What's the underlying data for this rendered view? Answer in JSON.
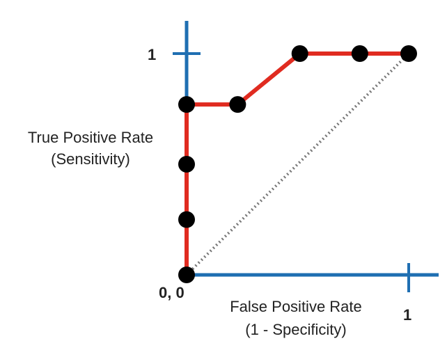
{
  "chart_data": {
    "type": "line",
    "ylabel_line1": "True Positive Rate",
    "ylabel_line2": "(Sensitivity)",
    "xlabel_line1": "False Positive Rate",
    "xlabel_line2": "(1 - Specificity)",
    "origin_label": "0, 0",
    "x_tick_label": "1",
    "y_tick_label": "1",
    "xlim": [
      0,
      1
    ],
    "ylim": [
      0,
      1
    ],
    "grid": false,
    "colors": {
      "axes": "#1f6fb2",
      "curve": "#e02b20",
      "points": "#000000",
      "diagonal": "#777777"
    },
    "series": [
      {
        "x": [
          0,
          0,
          0,
          0,
          0.23,
          0.51,
          0.78,
          1
        ],
        "y": [
          0,
          0.25,
          0.5,
          0.77,
          0.77,
          1,
          1,
          1
        ]
      }
    ],
    "reference_line": {
      "x": [
        0,
        1
      ],
      "y": [
        0,
        1
      ]
    }
  }
}
